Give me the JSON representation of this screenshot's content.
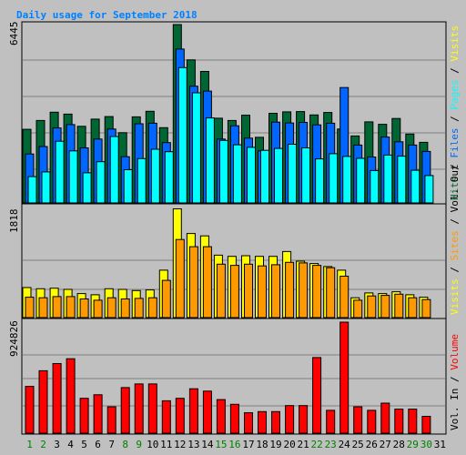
{
  "chart_data": {
    "type": "bar",
    "title": "Daily usage for September 2018",
    "categories": [
      "1",
      "2",
      "3",
      "4",
      "5",
      "6",
      "7",
      "8",
      "9",
      "10",
      "11",
      "12",
      "13",
      "14",
      "15",
      "16",
      "17",
      "18",
      "19",
      "20",
      "21",
      "22",
      "23",
      "24",
      "25",
      "26",
      "27",
      "28",
      "29",
      "30",
      "31"
    ],
    "weekend_days": [
      "1",
      "2",
      "8",
      "9",
      "15",
      "16",
      "22",
      "23",
      "29",
      "30"
    ],
    "panels": [
      {
        "id": "top",
        "max_label": "6445",
        "ymax": 6445,
        "axis_legend": [
          "Hits",
          "Files",
          "Pages",
          "Visits"
        ],
        "axis_legend_shown": [
          "Hits",
          "Files",
          "Pages"
        ],
        "series": [
          {
            "name": "Hits",
            "color": "#006633",
            "values": [
              2660,
              2980,
              3280,
              3210,
              2770,
              3030,
              3120,
              2540,
              3110,
              3310,
              2720,
              6445,
              5170,
              4750,
              3060,
              2980,
              3170,
              2370,
              3240,
              3290,
              3300,
              3180,
              3270,
              2670,
              2420,
              2930,
              2840,
              3050,
              2490,
              2190,
              0
            ]
          },
          {
            "name": "Files",
            "color": "#0066ff",
            "values": [
              1770,
              2040,
              2710,
              2830,
              1990,
              2310,
              2670,
              1670,
              2860,
              2880,
              2180,
              5560,
              4220,
              4040,
              2310,
              2790,
              2340,
              1880,
              2920,
              2890,
              2910,
              2820,
              2880,
              4170,
              2090,
              1660,
              2380,
              2210,
              2090,
              1860,
              0
            ]
          },
          {
            "name": "Pages",
            "color": "#00ffff",
            "values": [
              950,
              1120,
              2230,
              1880,
              1090,
              1490,
              2400,
              1200,
              1600,
              1940,
              1850,
              4890,
              3980,
              3070,
              2260,
              2100,
              2010,
              1900,
              1970,
              2120,
              1990,
              1590,
              1780,
              1680,
              1610,
              1170,
              1730,
              1690,
              1180,
              990,
              0
            ]
          }
        ]
      },
      {
        "id": "middle",
        "max_label": "1818",
        "ymax": 1818,
        "axis_legend": [
          "Visits",
          "Sites",
          "Vol. Out"
        ],
        "axis_legend_shown": [
          "Visits",
          "Sites"
        ],
        "series": [
          {
            "name": "Visits",
            "color": "#ffff00",
            "values": [
              500,
              480,
              490,
              470,
              400,
              380,
              480,
              470,
              450,
              460,
              790,
              1810,
              1400,
              1360,
              1040,
              1020,
              1030,
              1020,
              1020,
              1100,
              940,
              900,
              850,
              790,
              330,
              410,
              400,
              430,
              380,
              340,
              0
            ]
          },
          {
            "name": "Sites",
            "color": "#ff9900",
            "values": [
              340,
              330,
              350,
              350,
              310,
              290,
              330,
              310,
              320,
              330,
              620,
              1300,
              1180,
              1180,
              890,
              870,
              890,
              860,
              880,
              920,
              910,
              870,
              830,
              690,
              290,
              360,
              370,
              390,
              330,
              300,
              0
            ]
          }
        ]
      },
      {
        "id": "bottom",
        "max_label": "924826",
        "ymax": 924826,
        "axis_legend": [
          "Vol. In",
          "Volume"
        ],
        "axis_legend_shown": [
          "Volume"
        ],
        "series": [
          {
            "name": "Volume",
            "color": "#ff0000",
            "values": [
              390000,
              520000,
              580000,
              620000,
              290000,
              320000,
              220000,
              380000,
              410000,
              410000,
              270000,
              290000,
              370000,
              350000,
              280000,
              240000,
              170000,
              180000,
              180000,
              230000,
              230000,
              630000,
              190000,
              924826,
              220000,
              190000,
              250000,
              200000,
              200000,
              140000,
              0
            ]
          }
        ]
      }
    ]
  }
}
